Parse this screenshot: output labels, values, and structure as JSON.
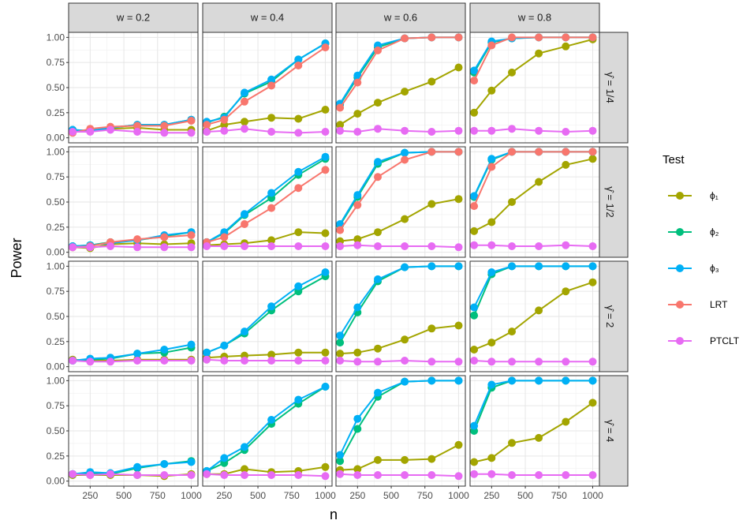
{
  "chart_data": {
    "type": "line",
    "ylabel": "Power",
    "xlabel": "n",
    "x": [
      120,
      250,
      400,
      600,
      800,
      1000
    ],
    "xlim": [
      90,
      1050
    ],
    "ylim": [
      0,
      1
    ],
    "xticks": [
      250,
      500,
      750,
      1000
    ],
    "yticks": [
      0,
      0.25,
      0.5,
      0.75,
      1
    ],
    "ytick_labels": [
      "0.00",
      "0.25",
      "0.50",
      "0.75",
      "1.00"
    ],
    "xtick_labels": [
      "250",
      "500",
      "750",
      "1000"
    ],
    "grid": true,
    "facet_cols": [
      "w = 0.2",
      "w = 0.4",
      "w = 0.6",
      "w = 0.8"
    ],
    "facet_rows": [
      "γ̂ = 1/4",
      "γ̂ = 1/2",
      "γ̂ = 2",
      "γ̂ = 4"
    ],
    "legend": {
      "title": "Test",
      "position": "right",
      "entries": [
        "ϕ₁",
        "ϕ₂",
        "ϕ₃",
        "LRT",
        "PTCLT"
      ]
    },
    "series_colors": [
      "#A3A500",
      "#00BF7D",
      "#00B0F6",
      "#F8766D",
      "#E76BF3"
    ],
    "panels": [
      [
        {
          "series": [
            {
              "name": "ϕ₁",
              "values": [
                0.06,
                0.07,
                0.09,
                0.1,
                0.08,
                0.08
              ]
            },
            {
              "name": "ϕ₂",
              "values": [
                0.08,
                0.07,
                0.1,
                0.13,
                0.13,
                0.18
              ]
            },
            {
              "name": "ϕ₃",
              "values": [
                0.08,
                0.07,
                0.1,
                0.13,
                0.13,
                0.18
              ]
            },
            {
              "name": "LRT",
              "values": [
                0.05,
                0.09,
                0.11,
                0.12,
                0.12,
                0.17
              ]
            },
            {
              "name": "PTCLT",
              "values": [
                0.06,
                0.06,
                0.08,
                0.06,
                0.05,
                0.05
              ]
            }
          ]
        },
        {
          "series": [
            {
              "name": "ϕ₁",
              "values": [
                0.07,
                0.13,
                0.16,
                0.2,
                0.19,
                0.28
              ]
            },
            {
              "name": "ϕ₂",
              "values": [
                0.15,
                0.21,
                0.44,
                0.56,
                0.78,
                0.94
              ]
            },
            {
              "name": "ϕ₃",
              "values": [
                0.16,
                0.2,
                0.45,
                0.58,
                0.78,
                0.94
              ]
            },
            {
              "name": "LRT",
              "values": [
                0.13,
                0.18,
                0.36,
                0.52,
                0.72,
                0.9
              ]
            },
            {
              "name": "PTCLT",
              "values": [
                0.06,
                0.07,
                0.09,
                0.06,
                0.05,
                0.06
              ]
            }
          ]
        },
        {
          "series": [
            {
              "name": "ϕ₁",
              "values": [
                0.13,
                0.24,
                0.35,
                0.46,
                0.56,
                0.7
              ]
            },
            {
              "name": "ϕ₂",
              "values": [
                0.33,
                0.6,
                0.9,
                0.99,
                1.0,
                1.0
              ]
            },
            {
              "name": "ϕ₃",
              "values": [
                0.34,
                0.62,
                0.92,
                0.99,
                1.0,
                1.0
              ]
            },
            {
              "name": "LRT",
              "values": [
                0.3,
                0.55,
                0.87,
                0.99,
                1.0,
                1.0
              ]
            },
            {
              "name": "PTCLT",
              "values": [
                0.07,
                0.06,
                0.09,
                0.07,
                0.06,
                0.07
              ]
            }
          ]
        },
        {
          "series": [
            {
              "name": "ϕ₁",
              "values": [
                0.25,
                0.47,
                0.65,
                0.84,
                0.91,
                0.98
              ]
            },
            {
              "name": "ϕ₂",
              "values": [
                0.65,
                0.95,
                0.99,
                1.0,
                1.0,
                1.0
              ]
            },
            {
              "name": "ϕ₃",
              "values": [
                0.67,
                0.96,
                0.99,
                1.0,
                1.0,
                1.0
              ]
            },
            {
              "name": "LRT",
              "values": [
                0.57,
                0.92,
                1.0,
                1.0,
                1.0,
                1.0
              ]
            },
            {
              "name": "PTCLT",
              "values": [
                0.07,
                0.07,
                0.09,
                0.07,
                0.06,
                0.07
              ]
            }
          ]
        }
      ],
      [
        {
          "series": [
            {
              "name": "ϕ₁",
              "values": [
                0.05,
                0.04,
                0.08,
                0.09,
                0.08,
                0.09
              ]
            },
            {
              "name": "ϕ₂",
              "values": [
                0.06,
                0.07,
                0.1,
                0.12,
                0.16,
                0.2
              ]
            },
            {
              "name": "ϕ₃",
              "values": [
                0.06,
                0.07,
                0.09,
                0.12,
                0.17,
                0.2
              ]
            },
            {
              "name": "LRT",
              "values": [
                0.05,
                0.06,
                0.1,
                0.13,
                0.15,
                0.17
              ]
            },
            {
              "name": "PTCLT",
              "values": [
                0.05,
                0.05,
                0.06,
                0.05,
                0.05,
                0.05
              ]
            }
          ]
        },
        {
          "series": [
            {
              "name": "ϕ₁",
              "values": [
                0.07,
                0.08,
                0.09,
                0.12,
                0.2,
                0.19
              ]
            },
            {
              "name": "ϕ₂",
              "values": [
                0.1,
                0.19,
                0.37,
                0.54,
                0.77,
                0.93
              ]
            },
            {
              "name": "ϕ₃",
              "values": [
                0.1,
                0.2,
                0.38,
                0.59,
                0.8,
                0.95
              ]
            },
            {
              "name": "LRT",
              "values": [
                0.1,
                0.15,
                0.28,
                0.44,
                0.64,
                0.82
              ]
            },
            {
              "name": "PTCLT",
              "values": [
                0.06,
                0.06,
                0.06,
                0.06,
                0.06,
                0.06
              ]
            }
          ]
        },
        {
          "series": [
            {
              "name": "ϕ₁",
              "values": [
                0.11,
                0.13,
                0.2,
                0.33,
                0.48,
                0.53
              ]
            },
            {
              "name": "ϕ₂",
              "values": [
                0.27,
                0.55,
                0.88,
                0.99,
                1.0,
                1.0
              ]
            },
            {
              "name": "ϕ₃",
              "values": [
                0.28,
                0.57,
                0.9,
                0.99,
                1.0,
                1.0
              ]
            },
            {
              "name": "LRT",
              "values": [
                0.22,
                0.47,
                0.75,
                0.92,
                1.0,
                1.0
              ]
            },
            {
              "name": "PTCLT",
              "values": [
                0.06,
                0.07,
                0.06,
                0.06,
                0.06,
                0.05
              ]
            }
          ]
        },
        {
          "series": [
            {
              "name": "ϕ₁",
              "values": [
                0.21,
                0.3,
                0.5,
                0.7,
                0.87,
                0.93
              ]
            },
            {
              "name": "ϕ₂",
              "values": [
                0.55,
                0.92,
                1.0,
                1.0,
                1.0,
                1.0
              ]
            },
            {
              "name": "ϕ₃",
              "values": [
                0.56,
                0.93,
                1.0,
                1.0,
                1.0,
                1.0
              ]
            },
            {
              "name": "LRT",
              "values": [
                0.46,
                0.85,
                1.0,
                1.0,
                1.0,
                1.0
              ]
            },
            {
              "name": "PTCLT",
              "values": [
                0.07,
                0.07,
                0.06,
                0.06,
                0.07,
                0.06
              ]
            }
          ]
        }
      ],
      [
        {
          "series": [
            {
              "name": "ϕ₁",
              "values": [
                0.07,
                0.06,
                0.06,
                0.07,
                0.07,
                0.07
              ]
            },
            {
              "name": "ϕ₂",
              "values": [
                0.06,
                0.07,
                0.08,
                0.13,
                0.14,
                0.19
              ]
            },
            {
              "name": "ϕ₃",
              "values": [
                0.06,
                0.08,
                0.09,
                0.13,
                0.17,
                0.22
              ]
            },
            {
              "name": "PTCLT",
              "values": [
                0.06,
                0.05,
                0.05,
                0.06,
                0.06,
                0.06
              ]
            }
          ]
        },
        {
          "series": [
            {
              "name": "ϕ₁",
              "values": [
                0.09,
                0.1,
                0.11,
                0.12,
                0.14,
                0.14
              ]
            },
            {
              "name": "ϕ₂",
              "values": [
                0.14,
                0.21,
                0.33,
                0.56,
                0.75,
                0.9
              ]
            },
            {
              "name": "ϕ₃",
              "values": [
                0.14,
                0.21,
                0.35,
                0.6,
                0.8,
                0.94
              ]
            },
            {
              "name": "PTCLT",
              "values": [
                0.07,
                0.06,
                0.06,
                0.06,
                0.06,
                0.06
              ]
            }
          ]
        },
        {
          "series": [
            {
              "name": "ϕ₁",
              "values": [
                0.13,
                0.14,
                0.18,
                0.27,
                0.38,
                0.41
              ]
            },
            {
              "name": "ϕ₂",
              "values": [
                0.24,
                0.54,
                0.85,
                0.99,
                1.0,
                1.0
              ]
            },
            {
              "name": "ϕ₃",
              "values": [
                0.31,
                0.59,
                0.87,
                0.99,
                1.0,
                1.0
              ]
            },
            {
              "name": "PTCLT",
              "values": [
                0.06,
                0.05,
                0.05,
                0.06,
                0.05,
                0.05
              ]
            }
          ]
        },
        {
          "series": [
            {
              "name": "ϕ₁",
              "values": [
                0.17,
                0.24,
                0.35,
                0.56,
                0.75,
                0.84
              ]
            },
            {
              "name": "ϕ₂",
              "values": [
                0.51,
                0.92,
                1.0,
                1.0,
                1.0,
                1.0
              ]
            },
            {
              "name": "ϕ₃",
              "values": [
                0.59,
                0.94,
                1.0,
                1.0,
                1.0,
                1.0
              ]
            },
            {
              "name": "PTCLT",
              "values": [
                0.06,
                0.05,
                0.05,
                0.05,
                0.05,
                0.05
              ]
            }
          ]
        }
      ],
      [
        {
          "series": [
            {
              "name": "ϕ₁",
              "values": [
                0.06,
                0.06,
                0.06,
                0.06,
                0.05,
                0.07
              ]
            },
            {
              "name": "ϕ₂",
              "values": [
                0.07,
                0.08,
                0.07,
                0.13,
                0.17,
                0.2
              ]
            },
            {
              "name": "ϕ₃",
              "values": [
                0.07,
                0.09,
                0.08,
                0.14,
                0.17,
                0.19
              ]
            },
            {
              "name": "PTCLT",
              "values": [
                0.07,
                0.06,
                0.07,
                0.06,
                0.06,
                0.06
              ]
            }
          ]
        },
        {
          "series": [
            {
              "name": "ϕ₁",
              "values": [
                0.07,
                0.07,
                0.12,
                0.09,
                0.1,
                0.14
              ]
            },
            {
              "name": "ϕ₂",
              "values": [
                0.1,
                0.18,
                0.31,
                0.57,
                0.77,
                0.94
              ]
            },
            {
              "name": "ϕ₃",
              "values": [
                0.1,
                0.23,
                0.34,
                0.61,
                0.81,
                0.94
              ]
            },
            {
              "name": "PTCLT",
              "values": [
                0.07,
                0.06,
                0.06,
                0.06,
                0.06,
                0.05
              ]
            }
          ]
        },
        {
          "series": [
            {
              "name": "ϕ₁",
              "values": [
                0.11,
                0.12,
                0.21,
                0.21,
                0.22,
                0.36
              ]
            },
            {
              "name": "ϕ₂",
              "values": [
                0.2,
                0.52,
                0.84,
                0.99,
                1.0,
                1.0
              ]
            },
            {
              "name": "ϕ₃",
              "values": [
                0.26,
                0.62,
                0.88,
                0.99,
                1.0,
                1.0
              ]
            },
            {
              "name": "PTCLT",
              "values": [
                0.07,
                0.06,
                0.06,
                0.06,
                0.06,
                0.05
              ]
            }
          ]
        },
        {
          "series": [
            {
              "name": "ϕ₁",
              "values": [
                0.19,
                0.23,
                0.38,
                0.43,
                0.59,
                0.78
              ]
            },
            {
              "name": "ϕ₂",
              "values": [
                0.5,
                0.93,
                1.0,
                1.0,
                1.0,
                1.0
              ]
            },
            {
              "name": "ϕ₃",
              "values": [
                0.55,
                0.96,
                1.0,
                1.0,
                1.0,
                1.0
              ]
            },
            {
              "name": "PTCLT",
              "values": [
                0.07,
                0.07,
                0.06,
                0.06,
                0.06,
                0.06
              ]
            }
          ]
        }
      ]
    ]
  }
}
